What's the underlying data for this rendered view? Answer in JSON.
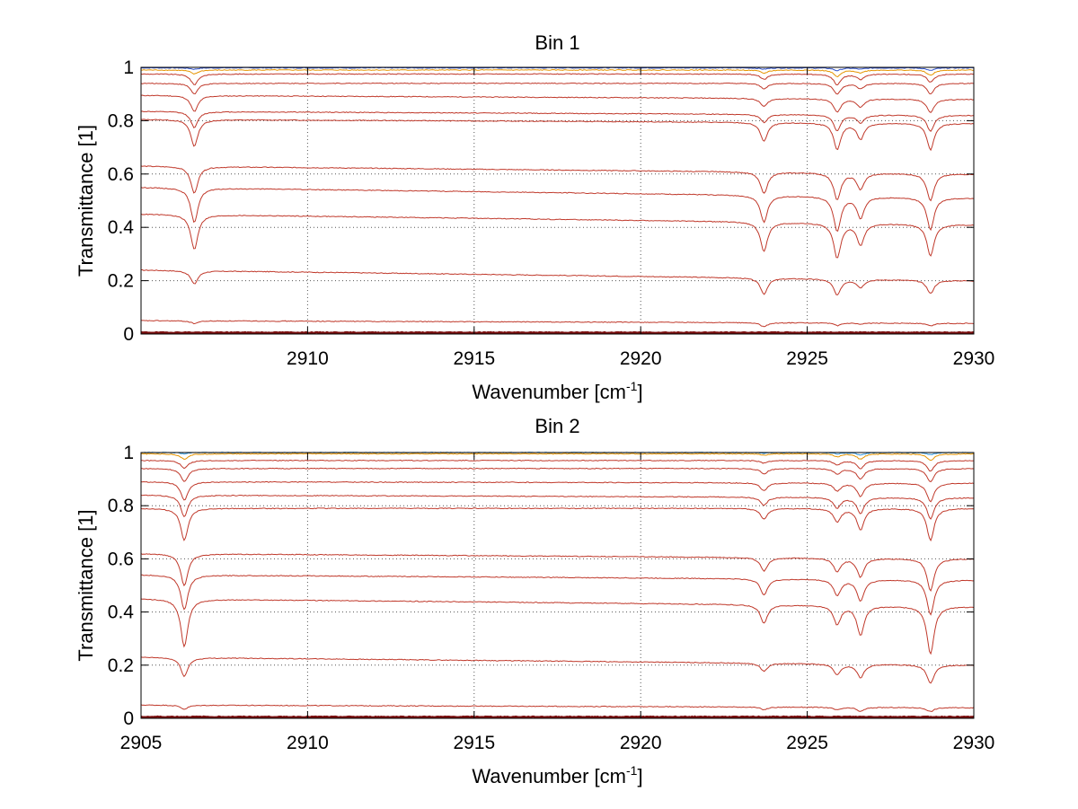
{
  "chart_data": [
    {
      "type": "line",
      "title": "Bin 1",
      "xlabel": "Wavenumber [cm",
      "xlabel_sup": "-1",
      "xlabel_close": "]",
      "ylabel": "Transmittance [1]",
      "xlim": [
        2905,
        2930
      ],
      "ylim": [
        0,
        1
      ],
      "xticks": [
        2910,
        2915,
        2920,
        2925,
        2930
      ],
      "xtick_labels": [
        "2910",
        "2915",
        "2920",
        "2925",
        "2930"
      ],
      "yticks": [
        0,
        0.2,
        0.4,
        0.6,
        0.8,
        1
      ],
      "ytick_labels": [
        "0",
        "0.2",
        "0.4",
        "0.6",
        "0.8",
        "1"
      ],
      "grid": true,
      "line_color": "#c0392b",
      "series": [
        {
          "baseline_start": 0.998,
          "baseline_end": 0.998,
          "depths": [
            0.005,
            0.005,
            0.01,
            0.005,
            0.01
          ],
          "color": "#3355cc"
        },
        {
          "baseline_start": 0.99,
          "baseline_end": 0.99,
          "depths": [
            0.015,
            0.012,
            0.025,
            0.01,
            0.02
          ],
          "color": "#e59400"
        },
        {
          "baseline_start": 0.975,
          "baseline_end": 0.975,
          "depths": [
            0.04,
            0.02,
            0.04,
            0.02,
            0.03
          ]
        },
        {
          "baseline_start": 0.94,
          "baseline_end": 0.94,
          "depths": [
            0.04,
            0.02,
            0.04,
            0.02,
            0.04
          ]
        },
        {
          "baseline_start": 0.895,
          "baseline_end": 0.88,
          "depths": [
            0.06,
            0.03,
            0.05,
            0.03,
            0.05
          ]
        },
        {
          "baseline_start": 0.835,
          "baseline_end": 0.82,
          "depths": [
            0.06,
            0.03,
            0.06,
            0.03,
            0.06
          ]
        },
        {
          "baseline_start": 0.805,
          "baseline_end": 0.79,
          "depths": [
            0.1,
            0.07,
            0.1,
            0.06,
            0.1
          ]
        },
        {
          "baseline_start": 0.63,
          "baseline_end": 0.6,
          "depths": [
            0.1,
            0.08,
            0.1,
            0.06,
            0.1
          ]
        },
        {
          "baseline_start": 0.55,
          "baseline_end": 0.51,
          "depths": [
            0.13,
            0.1,
            0.13,
            0.08,
            0.12
          ]
        },
        {
          "baseline_start": 0.45,
          "baseline_end": 0.41,
          "depths": [
            0.13,
            0.11,
            0.13,
            0.08,
            0.12
          ]
        },
        {
          "baseline_start": 0.24,
          "baseline_end": 0.2,
          "depths": [
            0.05,
            0.06,
            0.06,
            0.03,
            0.05
          ]
        },
        {
          "baseline_start": 0.05,
          "baseline_end": 0.04,
          "depths": [
            0.01,
            0.015,
            0.01,
            0.005,
            0.01
          ]
        },
        {
          "baseline_start": 0.005,
          "baseline_end": 0.005,
          "depths": [
            0,
            0,
            0,
            0,
            0
          ],
          "color": "#7b1010"
        }
      ],
      "absorption_lines_x": [
        2906.6,
        2923.7,
        2925.9,
        2926.6,
        2928.7
      ]
    },
    {
      "type": "line",
      "title": "Bin 2",
      "xlabel": "Wavenumber [cm",
      "xlabel_sup": "-1",
      "xlabel_close": "]",
      "ylabel": "Transmittance [1]",
      "xlim": [
        2905,
        2930
      ],
      "ylim": [
        0,
        1
      ],
      "xticks": [
        2905,
        2910,
        2915,
        2920,
        2925,
        2930
      ],
      "xtick_labels": [
        "2905",
        "2910",
        "2915",
        "2920",
        "2925",
        "2930"
      ],
      "yticks": [
        0,
        0.2,
        0.4,
        0.6,
        0.8,
        1
      ],
      "ytick_labels": [
        "0",
        "0.2",
        "0.4",
        "0.6",
        "0.8",
        "1"
      ],
      "grid": true,
      "line_color": "#c0392b",
      "series": [
        {
          "baseline_start": 1.0,
          "baseline_end": 1.0,
          "depths": [
            0.005,
            0.003,
            0.005,
            0.01,
            0.008
          ],
          "color": "#3399dd"
        },
        {
          "baseline_start": 0.995,
          "baseline_end": 0.995,
          "depths": [
            0.02,
            0.005,
            0.01,
            0.02,
            0.025
          ],
          "color": "#e59400"
        },
        {
          "baseline_start": 0.97,
          "baseline_end": 0.97,
          "depths": [
            0.03,
            0.01,
            0.015,
            0.03,
            0.04
          ]
        },
        {
          "baseline_start": 0.94,
          "baseline_end": 0.94,
          "depths": [
            0.05,
            0.02,
            0.02,
            0.04,
            0.05
          ]
        },
        {
          "baseline_start": 0.89,
          "baseline_end": 0.885,
          "depths": [
            0.07,
            0.03,
            0.03,
            0.05,
            0.07
          ]
        },
        {
          "baseline_start": 0.84,
          "baseline_end": 0.83,
          "depths": [
            0.08,
            0.03,
            0.04,
            0.06,
            0.08
          ]
        },
        {
          "baseline_start": 0.79,
          "baseline_end": 0.79,
          "depths": [
            0.12,
            0.04,
            0.05,
            0.08,
            0.12
          ]
        },
        {
          "baseline_start": 0.62,
          "baseline_end": 0.6,
          "depths": [
            0.12,
            0.05,
            0.05,
            0.07,
            0.12
          ]
        },
        {
          "baseline_start": 0.54,
          "baseline_end": 0.52,
          "depths": [
            0.13,
            0.06,
            0.06,
            0.08,
            0.13
          ]
        },
        {
          "baseline_start": 0.45,
          "baseline_end": 0.42,
          "depths": [
            0.18,
            0.07,
            0.07,
            0.11,
            0.18
          ]
        },
        {
          "baseline_start": 0.23,
          "baseline_end": 0.2,
          "depths": [
            0.07,
            0.03,
            0.04,
            0.05,
            0.07
          ]
        },
        {
          "baseline_start": 0.05,
          "baseline_end": 0.04,
          "depths": [
            0.015,
            0.01,
            0.01,
            0.015,
            0.015
          ]
        },
        {
          "baseline_start": 0.005,
          "baseline_end": 0.005,
          "depths": [
            0,
            0,
            0,
            0,
            0
          ],
          "color": "#7b1010"
        }
      ],
      "absorption_lines_x": [
        2906.3,
        2923.7,
        2925.9,
        2926.6,
        2928.7
      ]
    }
  ]
}
